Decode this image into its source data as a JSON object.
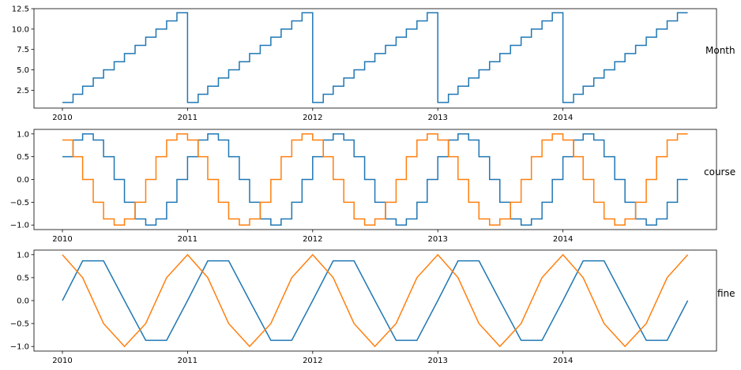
{
  "chart_data": [
    {
      "type": "line",
      "title": "",
      "xlabel": "",
      "ylabel": "",
      "side_label": "Month",
      "xlim": [
        2010.0,
        2015.0
      ],
      "ylim": [
        0.31,
        12.5
      ],
      "x_ticks": [
        2010,
        2011,
        2012,
        2013,
        2014
      ],
      "x_tick_labels": [
        "2010",
        "2011",
        "2012",
        "2013",
        "2014"
      ],
      "y_ticks": [
        2.5,
        5.0,
        7.5,
        10.0,
        12.5
      ],
      "y_tick_labels": [
        "2.5",
        "5.0",
        "7.5",
        "10.0",
        "12.5"
      ],
      "grid": false,
      "series": [
        {
          "color": "#1f77b4",
          "step": true,
          "x": [
            "2010-01",
            "2010-02",
            "2010-03",
            "2010-04",
            "2010-05",
            "2010-06",
            "2010-07",
            "2010-08",
            "2010-09",
            "2010-10",
            "2010-11",
            "2010-12",
            "2011-01",
            "2011-02",
            "2011-03",
            "2011-04",
            "2011-05",
            "2011-06",
            "2011-07",
            "2011-08",
            "2011-09",
            "2011-10",
            "2011-11",
            "2011-12",
            "2012-01",
            "2012-02",
            "2012-03",
            "2012-04",
            "2012-05",
            "2012-06",
            "2012-07",
            "2012-08",
            "2012-09",
            "2012-10",
            "2012-11",
            "2012-12",
            "2013-01",
            "2013-02",
            "2013-03",
            "2013-04",
            "2013-05",
            "2013-06",
            "2013-07",
            "2013-08",
            "2013-09",
            "2013-10",
            "2013-11",
            "2013-12",
            "2014-01",
            "2014-02",
            "2014-03",
            "2014-04",
            "2014-05",
            "2014-06",
            "2014-07",
            "2014-08",
            "2014-09",
            "2014-10",
            "2014-11",
            "2014-12"
          ],
          "values": [
            1,
            2,
            3,
            4,
            5,
            6,
            7,
            8,
            9,
            10,
            11,
            12,
            1,
            2,
            3,
            4,
            5,
            6,
            7,
            8,
            9,
            10,
            11,
            12,
            1,
            2,
            3,
            4,
            5,
            6,
            7,
            8,
            9,
            10,
            11,
            12,
            1,
            2,
            3,
            4,
            5,
            6,
            7,
            8,
            9,
            10,
            11,
            12,
            1,
            2,
            3,
            4,
            5,
            6,
            7,
            8,
            9,
            10,
            11,
            12
          ]
        }
      ]
    },
    {
      "type": "line",
      "title": "",
      "xlabel": "",
      "ylabel": "",
      "side_label": "course",
      "xlim": [
        2010.0,
        2015.0
      ],
      "ylim": [
        -1.1,
        1.1
      ],
      "x_ticks": [
        2010,
        2011,
        2012,
        2013,
        2014
      ],
      "x_tick_labels": [
        "2010",
        "2011",
        "2012",
        "2013",
        "2014"
      ],
      "y_ticks": [
        -1.0,
        -0.5,
        0.0,
        0.5,
        1.0
      ],
      "y_tick_labels": [
        "−1.0",
        "−0.5",
        "0.0",
        "0.5",
        "1.0"
      ],
      "grid": false,
      "series": [
        {
          "color": "#1f77b4",
          "step": true,
          "x": [
            "2010-01",
            "2010-02",
            "2010-03",
            "2010-04",
            "2010-05",
            "2010-06",
            "2010-07",
            "2010-08",
            "2010-09",
            "2010-10",
            "2010-11",
            "2010-12",
            "2011-01",
            "2011-02",
            "2011-03",
            "2011-04",
            "2011-05",
            "2011-06",
            "2011-07",
            "2011-08",
            "2011-09",
            "2011-10",
            "2011-11",
            "2011-12",
            "2012-01",
            "2012-02",
            "2012-03",
            "2012-04",
            "2012-05",
            "2012-06",
            "2012-07",
            "2012-08",
            "2012-09",
            "2012-10",
            "2012-11",
            "2012-12",
            "2013-01",
            "2013-02",
            "2013-03",
            "2013-04",
            "2013-05",
            "2013-06",
            "2013-07",
            "2013-08",
            "2013-09",
            "2013-10",
            "2013-11",
            "2013-12",
            "2014-01",
            "2014-02",
            "2014-03",
            "2014-04",
            "2014-05",
            "2014-06",
            "2014-07",
            "2014-08",
            "2014-09",
            "2014-10",
            "2014-11",
            "2014-12"
          ],
          "values": [
            0.5,
            0.866,
            1.0,
            0.866,
            0.5,
            0.0,
            -0.5,
            -0.866,
            -1.0,
            -0.866,
            -0.5,
            0.0,
            0.5,
            0.866,
            1.0,
            0.866,
            0.5,
            0.0,
            -0.5,
            -0.866,
            -1.0,
            -0.866,
            -0.5,
            0.0,
            0.5,
            0.866,
            1.0,
            0.866,
            0.5,
            0.0,
            -0.5,
            -0.866,
            -1.0,
            -0.866,
            -0.5,
            0.0,
            0.5,
            0.866,
            1.0,
            0.866,
            0.5,
            0.0,
            -0.5,
            -0.866,
            -1.0,
            -0.866,
            -0.5,
            0.0,
            0.5,
            0.866,
            1.0,
            0.866,
            0.5,
            0.0,
            -0.5,
            -0.866,
            -1.0,
            -0.866,
            -0.5,
            0.0
          ]
        },
        {
          "color": "#ff7f0e",
          "step": true,
          "x": [
            "2010-01",
            "2010-02",
            "2010-03",
            "2010-04",
            "2010-05",
            "2010-06",
            "2010-07",
            "2010-08",
            "2010-09",
            "2010-10",
            "2010-11",
            "2010-12",
            "2011-01",
            "2011-02",
            "2011-03",
            "2011-04",
            "2011-05",
            "2011-06",
            "2011-07",
            "2011-08",
            "2011-09",
            "2011-10",
            "2011-11",
            "2011-12",
            "2012-01",
            "2012-02",
            "2012-03",
            "2012-04",
            "2012-05",
            "2012-06",
            "2012-07",
            "2012-08",
            "2012-09",
            "2012-10",
            "2012-11",
            "2012-12",
            "2013-01",
            "2013-02",
            "2013-03",
            "2013-04",
            "2013-05",
            "2013-06",
            "2013-07",
            "2013-08",
            "2013-09",
            "2013-10",
            "2013-11",
            "2013-12",
            "2014-01",
            "2014-02",
            "2014-03",
            "2014-04",
            "2014-05",
            "2014-06",
            "2014-07",
            "2014-08",
            "2014-09",
            "2014-10",
            "2014-11",
            "2014-12"
          ],
          "values": [
            0.866,
            0.5,
            0.0,
            -0.5,
            -0.866,
            -1.0,
            -0.866,
            -0.5,
            0.0,
            0.5,
            0.866,
            1.0,
            0.866,
            0.5,
            0.0,
            -0.5,
            -0.866,
            -1.0,
            -0.866,
            -0.5,
            0.0,
            0.5,
            0.866,
            1.0,
            0.866,
            0.5,
            0.0,
            -0.5,
            -0.866,
            -1.0,
            -0.866,
            -0.5,
            0.0,
            0.5,
            0.866,
            1.0,
            0.866,
            0.5,
            0.0,
            -0.5,
            -0.866,
            -1.0,
            -0.866,
            -0.5,
            0.0,
            0.5,
            0.866,
            1.0,
            0.866,
            0.5,
            0.0,
            -0.5,
            -0.866,
            -1.0,
            -0.866,
            -0.5,
            0.0,
            0.5,
            0.866,
            1.0
          ]
        }
      ]
    },
    {
      "type": "line",
      "title": "",
      "xlabel": "",
      "ylabel": "",
      "side_label": "fine",
      "xlim": [
        2010.0,
        2015.0
      ],
      "ylim": [
        -1.1,
        1.1
      ],
      "x_ticks": [
        2010,
        2011,
        2012,
        2013,
        2014
      ],
      "x_tick_labels": [
        "2010",
        "2011",
        "2012",
        "2013",
        "2014"
      ],
      "y_ticks": [
        -1.0,
        -0.5,
        0.0,
        0.5,
        1.0
      ],
      "y_tick_labels": [
        "−1.0",
        "−0.5",
        "0.0",
        "0.5",
        "1.0"
      ],
      "grid": false,
      "series": [
        {
          "color": "#1f77b4",
          "step": false,
          "x": [
            "2010-01-01",
            "2010-03-01",
            "2010-05-01",
            "2010-07-01",
            "2010-09-01",
            "2010-11-01",
            "2011-01-01",
            "2011-03-01",
            "2011-05-01",
            "2011-07-01",
            "2011-09-01",
            "2011-11-01",
            "2012-01-01",
            "2012-03-01",
            "2012-05-01",
            "2012-07-01",
            "2012-09-01",
            "2012-11-01",
            "2013-01-01",
            "2013-03-01",
            "2013-05-01",
            "2013-07-01",
            "2013-09-01",
            "2013-11-01",
            "2014-01-01",
            "2014-03-01",
            "2014-05-01",
            "2014-07-01",
            "2014-09-01",
            "2014-11-01",
            "2014-12-31"
          ],
          "values": [
            0.0,
            0.866,
            0.866,
            0.0,
            -0.866,
            -0.866,
            0.0,
            0.866,
            0.866,
            0.0,
            -0.866,
            -0.866,
            0.0,
            0.866,
            0.866,
            0.0,
            -0.866,
            -0.866,
            0.0,
            0.866,
            0.866,
            0.0,
            -0.866,
            -0.866,
            0.0,
            0.866,
            0.866,
            0.0,
            -0.866,
            -0.866,
            0.0
          ]
        },
        {
          "color": "#ff7f0e",
          "step": false,
          "x": [
            "2010-01-01",
            "2010-03-01",
            "2010-05-01",
            "2010-07-01",
            "2010-09-01",
            "2010-11-01",
            "2011-01-01",
            "2011-03-01",
            "2011-05-01",
            "2011-07-01",
            "2011-09-01",
            "2011-11-01",
            "2012-01-01",
            "2012-03-01",
            "2012-05-01",
            "2012-07-01",
            "2012-09-01",
            "2012-11-01",
            "2013-01-01",
            "2013-03-01",
            "2013-05-01",
            "2013-07-01",
            "2013-09-01",
            "2013-11-01",
            "2014-01-01",
            "2014-03-01",
            "2014-05-01",
            "2014-07-01",
            "2014-09-01",
            "2014-11-01",
            "2014-12-31"
          ],
          "values": [
            1.0,
            0.5,
            -0.5,
            -1.0,
            -0.5,
            0.5,
            1.0,
            0.5,
            -0.5,
            -1.0,
            -0.5,
            0.5,
            1.0,
            0.5,
            -0.5,
            -1.0,
            -0.5,
            0.5,
            1.0,
            0.5,
            -0.5,
            -1.0,
            -0.5,
            0.5,
            1.0,
            0.5,
            -0.5,
            -1.0,
            -0.5,
            0.5,
            1.0
          ]
        }
      ]
    }
  ]
}
